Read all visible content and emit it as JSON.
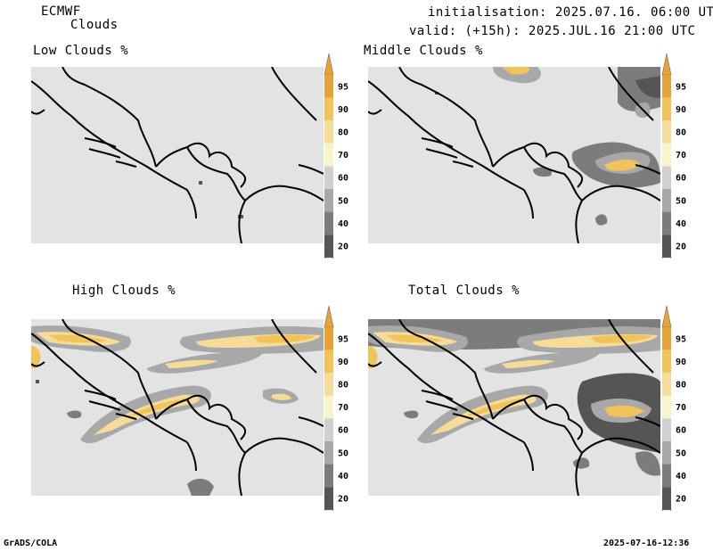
{
  "header": {
    "model": "ECMWF",
    "product": "Clouds",
    "init": "initialisation: 2025.07.16. 06:00 UTC",
    "valid": "valid: (+15h): 2025.JUL.16 21:00 UTC"
  },
  "panels": [
    {
      "title": "Low Clouds %"
    },
    {
      "title": "Middle Clouds %"
    },
    {
      "title": "High Clouds %"
    },
    {
      "title": "Total Clouds %"
    }
  ],
  "colorbar": {
    "ticks": [
      "95",
      "90",
      "80",
      "70",
      "60",
      "50",
      "40",
      "20"
    ],
    "colors": {
      "c95": "#e8a23a",
      "c90": "#f0c45a",
      "c80": "#f5dc98",
      "c70": "#f8f5c8",
      "c60": "#d0d0d0",
      "c50": "#a8a8a8",
      "c40": "#7c7c7c",
      "c20": "#555555",
      "below": "#ffffff",
      "background": "#e3e3e3"
    }
  },
  "footer": {
    "left": "GrADS/COLA",
    "right": "2025-07-16-12:36"
  }
}
